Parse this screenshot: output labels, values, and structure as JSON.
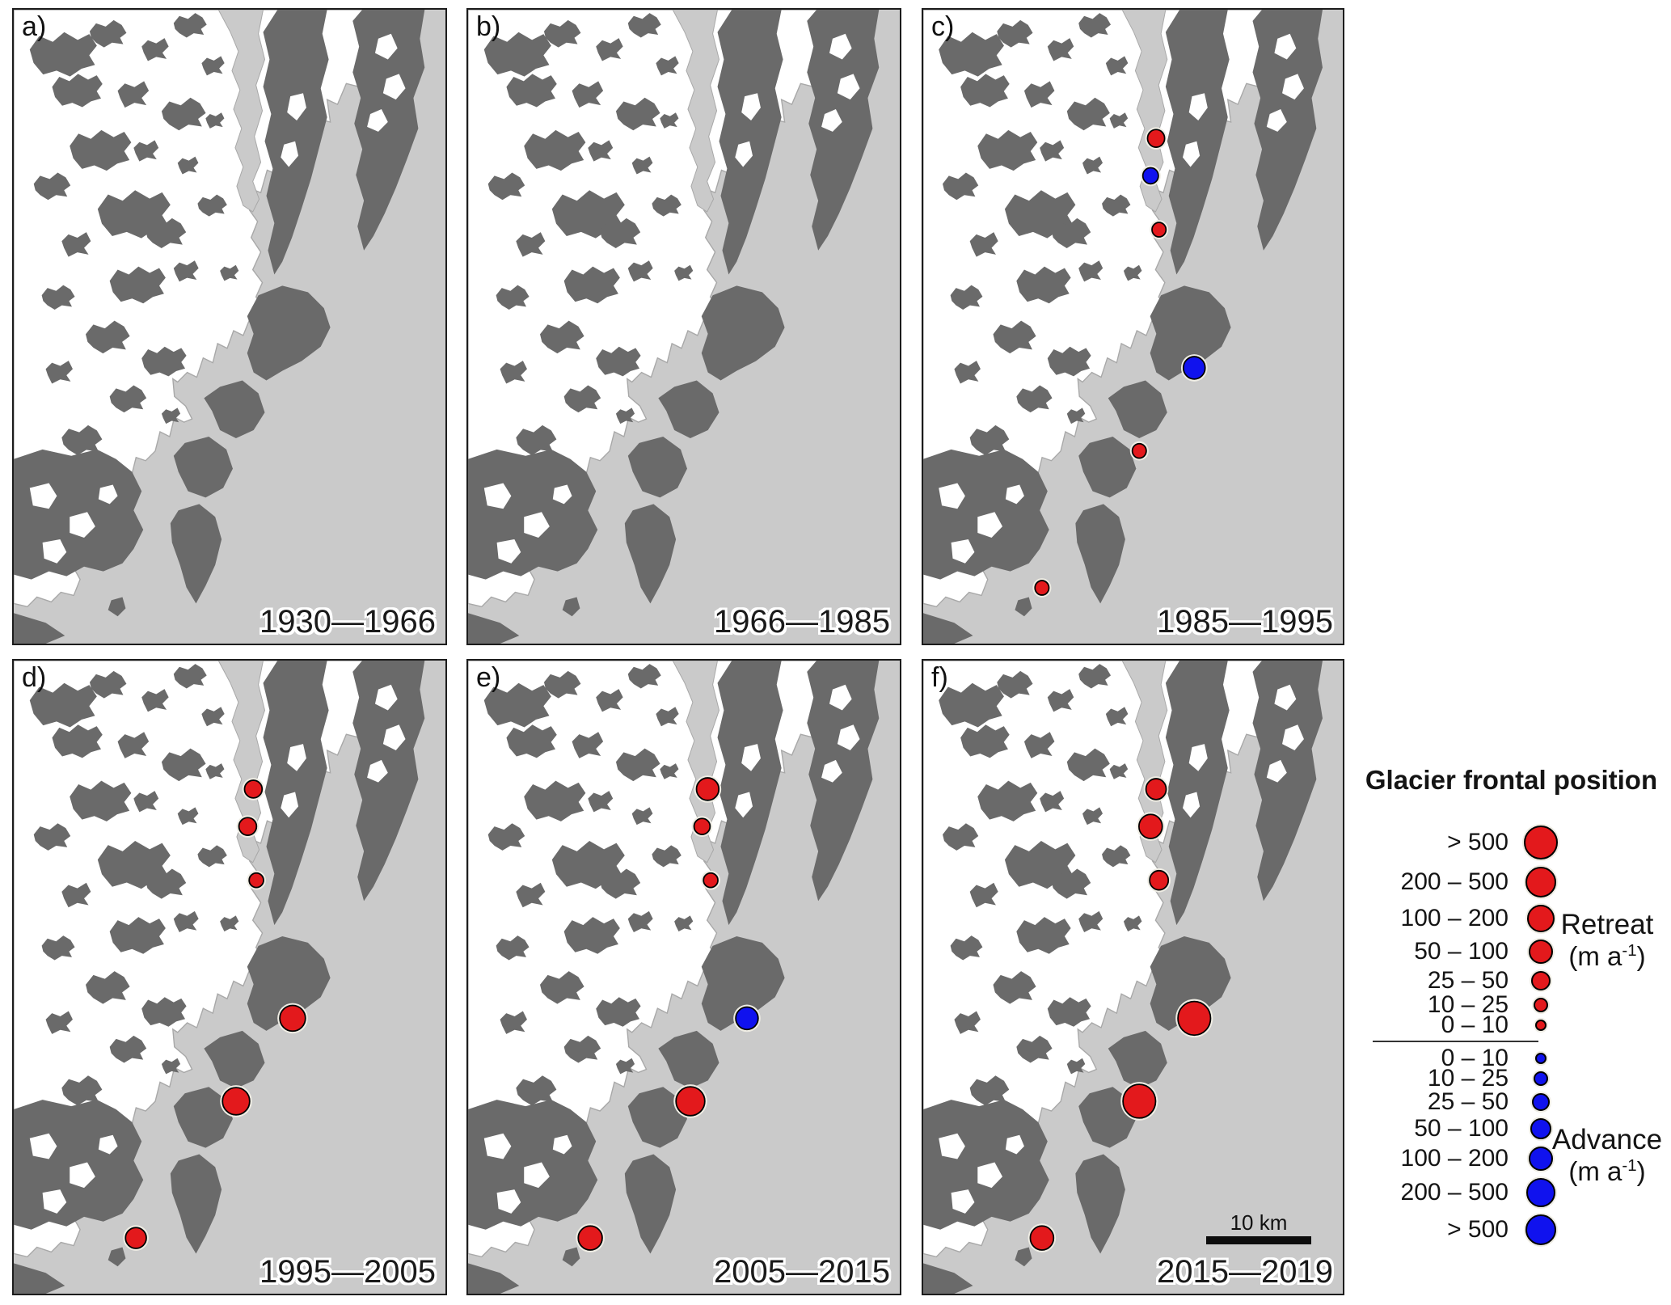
{
  "colors": {
    "retreat_fill": "#e3191c",
    "advance_fill": "#1012ee",
    "ocean": "#cacaca",
    "land": "#6a6a6a",
    "glacier": "#ffffff"
  },
  "panels": [
    {
      "id": "a",
      "label": "a)",
      "period": "1930—1966",
      "markers": []
    },
    {
      "id": "b",
      "label": "b)",
      "period": "1966—1985",
      "markers": []
    },
    {
      "id": "c",
      "label": "c)",
      "period": "1985—1995",
      "markers": [
        {
          "x": 0.555,
          "y": 0.203,
          "r": 11,
          "type": "retreat",
          "rate_class": "25 – 50"
        },
        {
          "x": 0.542,
          "y": 0.262,
          "r": 10,
          "type": "advance",
          "rate_class": "25 – 50"
        },
        {
          "x": 0.562,
          "y": 0.347,
          "r": 9,
          "type": "retreat",
          "rate_class": "10 – 25"
        },
        {
          "x": 0.646,
          "y": 0.565,
          "r": 14,
          "type": "advance",
          "rate_class": "50 – 100"
        },
        {
          "x": 0.515,
          "y": 0.696,
          "r": 9,
          "type": "retreat",
          "rate_class": "10 – 25"
        },
        {
          "x": 0.283,
          "y": 0.912,
          "r": 9,
          "type": "retreat",
          "rate_class": "10 – 25"
        }
      ]
    },
    {
      "id": "d",
      "label": "d)",
      "period": "1995—2005",
      "markers": [
        {
          "x": 0.555,
          "y": 0.203,
          "r": 11,
          "type": "retreat",
          "rate_class": "25 – 50"
        },
        {
          "x": 0.542,
          "y": 0.262,
          "r": 11,
          "type": "retreat",
          "rate_class": "25 – 50"
        },
        {
          "x": 0.562,
          "y": 0.347,
          "r": 9,
          "type": "retreat",
          "rate_class": "10 – 25"
        },
        {
          "x": 0.646,
          "y": 0.565,
          "r": 16,
          "type": "retreat",
          "rate_class": "100 – 200"
        },
        {
          "x": 0.515,
          "y": 0.696,
          "r": 17,
          "type": "retreat",
          "rate_class": "100 – 200"
        },
        {
          "x": 0.283,
          "y": 0.912,
          "r": 13,
          "type": "retreat",
          "rate_class": "50 – 100"
        }
      ]
    },
    {
      "id": "e",
      "label": "e)",
      "period": "2005—2015",
      "markers": [
        {
          "x": 0.555,
          "y": 0.203,
          "r": 14,
          "type": "retreat",
          "rate_class": "50 – 100"
        },
        {
          "x": 0.542,
          "y": 0.262,
          "r": 10,
          "type": "retreat",
          "rate_class": "25 – 50"
        },
        {
          "x": 0.562,
          "y": 0.347,
          "r": 9,
          "type": "retreat",
          "rate_class": "10 – 25"
        },
        {
          "x": 0.646,
          "y": 0.565,
          "r": 14,
          "type": "advance",
          "rate_class": "50 – 100"
        },
        {
          "x": 0.515,
          "y": 0.696,
          "r": 18,
          "type": "retreat",
          "rate_class": "200 – 500"
        },
        {
          "x": 0.283,
          "y": 0.912,
          "r": 15,
          "type": "retreat",
          "rate_class": "50 – 100"
        }
      ]
    },
    {
      "id": "f",
      "label": "f)",
      "period": "2015—2019",
      "markers": [
        {
          "x": 0.555,
          "y": 0.203,
          "r": 13,
          "type": "retreat",
          "rate_class": "50 – 100"
        },
        {
          "x": 0.542,
          "y": 0.262,
          "r": 15,
          "type": "retreat",
          "rate_class": "50 – 100"
        },
        {
          "x": 0.562,
          "y": 0.347,
          "r": 12,
          "type": "retreat",
          "rate_class": "25 – 50"
        },
        {
          "x": 0.646,
          "y": 0.565,
          "r": 21,
          "type": "retreat",
          "rate_class": "> 500"
        },
        {
          "x": 0.515,
          "y": 0.696,
          "r": 21,
          "type": "retreat",
          "rate_class": "> 500"
        },
        {
          "x": 0.283,
          "y": 0.912,
          "r": 15,
          "type": "retreat",
          "rate_class": "50 – 100"
        }
      ]
    }
  ],
  "scalebar": {
    "label": "10 km"
  },
  "legend": {
    "title": "Glacier frontal position",
    "retreat": {
      "label": "Retreat",
      "unit_prefix": "(m a",
      "unit_sup": "-1",
      "unit_suffix": ")",
      "rows": [
        {
          "label": "> 500",
          "r": 21
        },
        {
          "label": "200 – 500",
          "r": 19
        },
        {
          "label": "100 – 200",
          "r": 17
        },
        {
          "label": "50 – 100",
          "r": 15
        },
        {
          "label": "25 – 50",
          "r": 12
        },
        {
          "label": "10 – 25",
          "r": 9
        },
        {
          "label": "0 – 10",
          "r": 7
        }
      ]
    },
    "advance": {
      "label": "Advance",
      "unit_prefix": "(m a",
      "unit_sup": "-1",
      "unit_suffix": ")",
      "rows": [
        {
          "label": "0 – 10",
          "r": 7
        },
        {
          "label": "10 – 25",
          "r": 9
        },
        {
          "label": "25 – 50",
          "r": 11
        },
        {
          "label": "50 – 100",
          "r": 13
        },
        {
          "label": "100 – 200",
          "r": 15
        },
        {
          "label": "200 – 500",
          "r": 18
        },
        {
          "label": "> 500",
          "r": 19
        }
      ]
    }
  }
}
